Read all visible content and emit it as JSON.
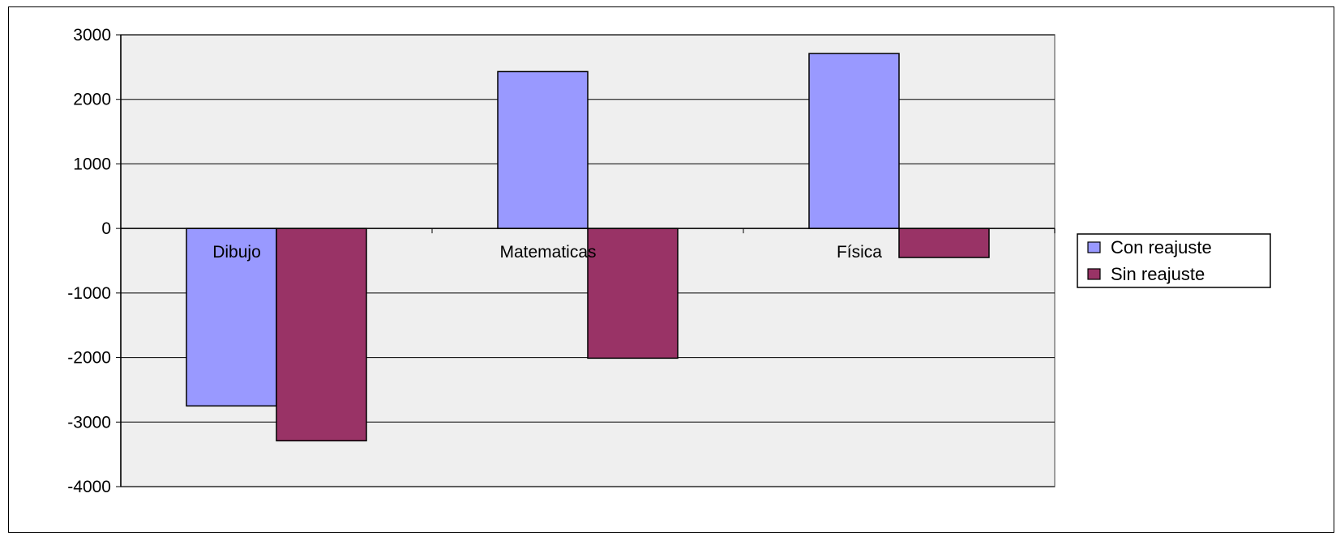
{
  "chart_data": {
    "type": "bar",
    "title": "",
    "xlabel": "",
    "ylabel": "",
    "categories": [
      "Dibujo",
      "Matematicas",
      "Física"
    ],
    "series": [
      {
        "name": "Con reajuste",
        "color": "#9999ff",
        "values": [
          -2750,
          2430,
          2710
        ]
      },
      {
        "name": "Sin reajuste",
        "color": "#993366",
        "values": [
          -3290,
          -2010,
          -450
        ]
      }
    ],
    "ylim": [
      -4000,
      3000
    ],
    "yticks": [
      3000,
      2000,
      1000,
      0,
      -1000,
      -2000,
      -3000,
      -4000
    ],
    "grid": true,
    "plot_background": "#efefef",
    "legend_position": "right"
  }
}
